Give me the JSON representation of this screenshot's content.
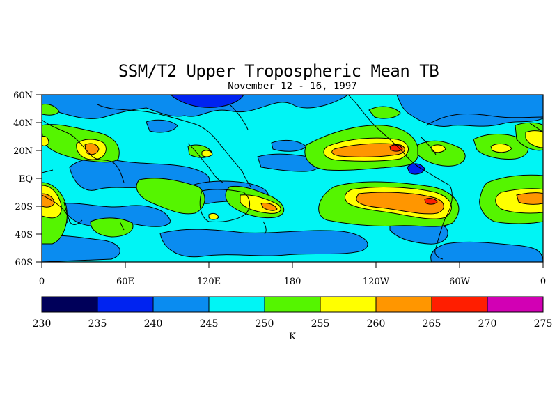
{
  "title": "SSM/T2 Upper Tropospheric Mean TB",
  "subtitle": "November 12 - 16, 1997",
  "map": {
    "lat_labels": [
      "60N",
      "40N",
      "20N",
      "EQ",
      "20S",
      "40S",
      "60S"
    ],
    "lon_labels": [
      "0",
      "60E",
      "120E",
      "180",
      "120W",
      "60W",
      "0"
    ]
  },
  "colorbar": {
    "unit_label": "K",
    "ticks": [
      "230",
      "235",
      "240",
      "245",
      "250",
      "255",
      "260",
      "265",
      "270",
      "275"
    ],
    "colors": [
      "#00005a",
      "#0023f0",
      "#0a8cf0",
      "#00f5f5",
      "#55f500",
      "#ffff00",
      "#ff9600",
      "#ff1e00",
      "#d200b4"
    ]
  }
}
